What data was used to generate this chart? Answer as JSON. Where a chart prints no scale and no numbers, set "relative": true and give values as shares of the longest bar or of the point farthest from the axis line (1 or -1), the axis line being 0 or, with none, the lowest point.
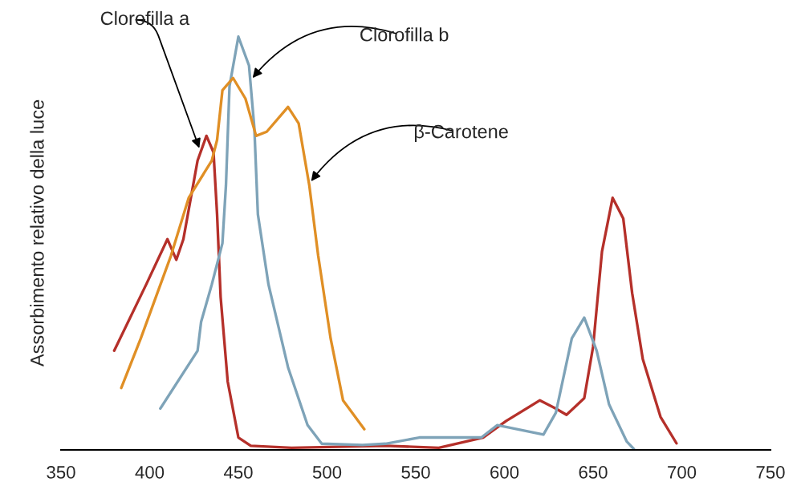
{
  "chart_data": {
    "type": "line",
    "relative": true,
    "ylabel": "Assorbimento relativo della luce",
    "xlim": [
      350,
      750
    ],
    "xticks": [
      350,
      400,
      450,
      500,
      550,
      600,
      650,
      700,
      750
    ],
    "grid": false,
    "legend": false,
    "marker": "none",
    "line_style": "solid",
    "tick_labels": "x",
    "series": [
      {
        "color": "#b5302a",
        "x": [
          380,
          398,
          410,
          415,
          419,
          427,
          432,
          436,
          438,
          440,
          444,
          450,
          457,
          480,
          533,
          563,
          588,
          601,
          620,
          629,
          635,
          645,
          650,
          655,
          661,
          667,
          672,
          678,
          688,
          697
        ],
        "values": [
          0.24,
          0.4,
          0.51,
          0.46,
          0.51,
          0.7,
          0.76,
          0.72,
          0.57,
          0.37,
          0.165,
          0.03,
          0.01,
          0.005,
          0.01,
          0.005,
          0.03,
          0.07,
          0.12,
          0.1,
          0.085,
          0.125,
          0.25,
          0.48,
          0.61,
          0.56,
          0.38,
          0.22,
          0.08,
          0.016
        ]
      },
      {
        "color": "#7ea3b8",
        "x": [
          406,
          427,
          429,
          435,
          441,
          443,
          445,
          450,
          456,
          459,
          461,
          467,
          478,
          489,
          497,
          520,
          533,
          552,
          587,
          596,
          622,
          629,
          638,
          645,
          652,
          659,
          669,
          673
        ],
        "values": [
          0.1,
          0.24,
          0.31,
          0.4,
          0.5,
          0.64,
          0.88,
          1.0,
          0.93,
          0.78,
          0.57,
          0.4,
          0.2,
          0.06,
          0.015,
          0.012,
          0.015,
          0.03,
          0.03,
          0.06,
          0.037,
          0.09,
          0.27,
          0.32,
          0.24,
          0.11,
          0.02,
          0.002
        ]
      },
      {
        "color": "#e08f25",
        "x": [
          384,
          395,
          412,
          422,
          435,
          438,
          441,
          447,
          454,
          460,
          466,
          478,
          484,
          490,
          495,
          502,
          509,
          521
        ],
        "values": [
          0.15,
          0.27,
          0.47,
          0.61,
          0.7,
          0.75,
          0.87,
          0.9,
          0.85,
          0.76,
          0.77,
          0.83,
          0.79,
          0.64,
          0.47,
          0.27,
          0.12,
          0.05
        ]
      }
    ],
    "annotations": [
      {
        "text": "Clorofilla a",
        "x": 428,
        "y": 0.73
      },
      {
        "text": "Clorofilla b",
        "x": 458,
        "y": 0.9
      },
      {
        "text": "β-Carotene",
        "x": 491,
        "y": 0.65
      }
    ]
  }
}
